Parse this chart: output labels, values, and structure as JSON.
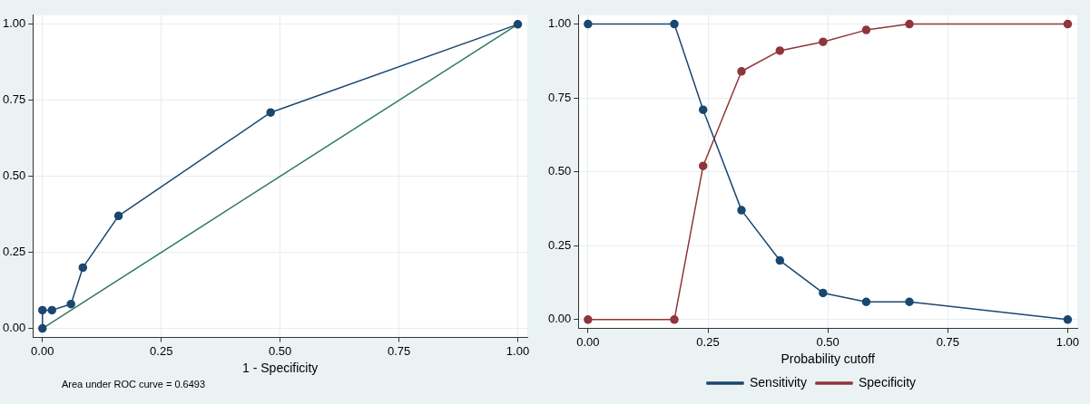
{
  "chart_data": [
    {
      "type": "line",
      "xlabel": "1 - Specificity",
      "xlim": [
        -0.02,
        1.02
      ],
      "ylim": [
        -0.03,
        1.03
      ],
      "xticks": [
        {
          "value": 0,
          "label": "0.00"
        },
        {
          "value": 0.25,
          "label": "0.25"
        },
        {
          "value": 0.5,
          "label": "0.50"
        },
        {
          "value": 0.75,
          "label": "0.75"
        },
        {
          "value": 1,
          "label": "1.00"
        }
      ],
      "yticks": [
        {
          "value": 0,
          "label": "0.00"
        },
        {
          "value": 0.25,
          "label": "0.25"
        },
        {
          "value": 0.5,
          "label": "0.50"
        },
        {
          "value": 0.75,
          "label": "0.75"
        },
        {
          "value": 1,
          "label": "1.00"
        }
      ],
      "grid": true,
      "marker": "circle",
      "legend": false,
      "series": [
        {
          "color": "#1a476f",
          "x": [
            0,
            0,
            0.02,
            0.06,
            0.085,
            0.16,
            0.48,
            1
          ],
          "values": [
            0,
            0.06,
            0.06,
            0.08,
            0.2,
            0.37,
            0.71,
            1
          ]
        },
        {
          "color": "#2d7a62",
          "x": [
            0,
            1
          ],
          "values": [
            0,
            1
          ],
          "marker": "none"
        }
      ],
      "annotations": [
        "Area under ROC curve = 0.6493"
      ]
    },
    {
      "type": "line",
      "xlabel": "Probability cutoff",
      "xlim": [
        -0.02,
        1.02
      ],
      "ylim": [
        -0.03,
        1.03
      ],
      "xticks": [
        {
          "value": 0,
          "label": "0.00"
        },
        {
          "value": 0.25,
          "label": "0.25"
        },
        {
          "value": 0.5,
          "label": "0.50"
        },
        {
          "value": 0.75,
          "label": "0.75"
        },
        {
          "value": 1,
          "label": "1.00"
        }
      ],
      "yticks": [
        {
          "value": 0,
          "label": "0.00"
        },
        {
          "value": 0.25,
          "label": "0.25"
        },
        {
          "value": 0.5,
          "label": "0.50"
        },
        {
          "value": 0.75,
          "label": "0.75"
        },
        {
          "value": 1,
          "label": "1.00"
        }
      ],
      "grid": true,
      "marker": "circle",
      "legend": "bottom",
      "x": [
        0,
        0.18,
        0.24,
        0.32,
        0.4,
        0.49,
        0.58,
        0.67,
        1
      ],
      "series": [
        {
          "name": "Sensitivity",
          "color": "#1a476f",
          "values": [
            1,
            1,
            0.71,
            0.37,
            0.2,
            0.09,
            0.06,
            0.06,
            0
          ]
        },
        {
          "name": "Specificity",
          "color": "#90353b",
          "values": [
            0,
            0,
            0.52,
            0.84,
            0.91,
            0.94,
            0.98,
            1,
            1
          ]
        }
      ]
    }
  ]
}
